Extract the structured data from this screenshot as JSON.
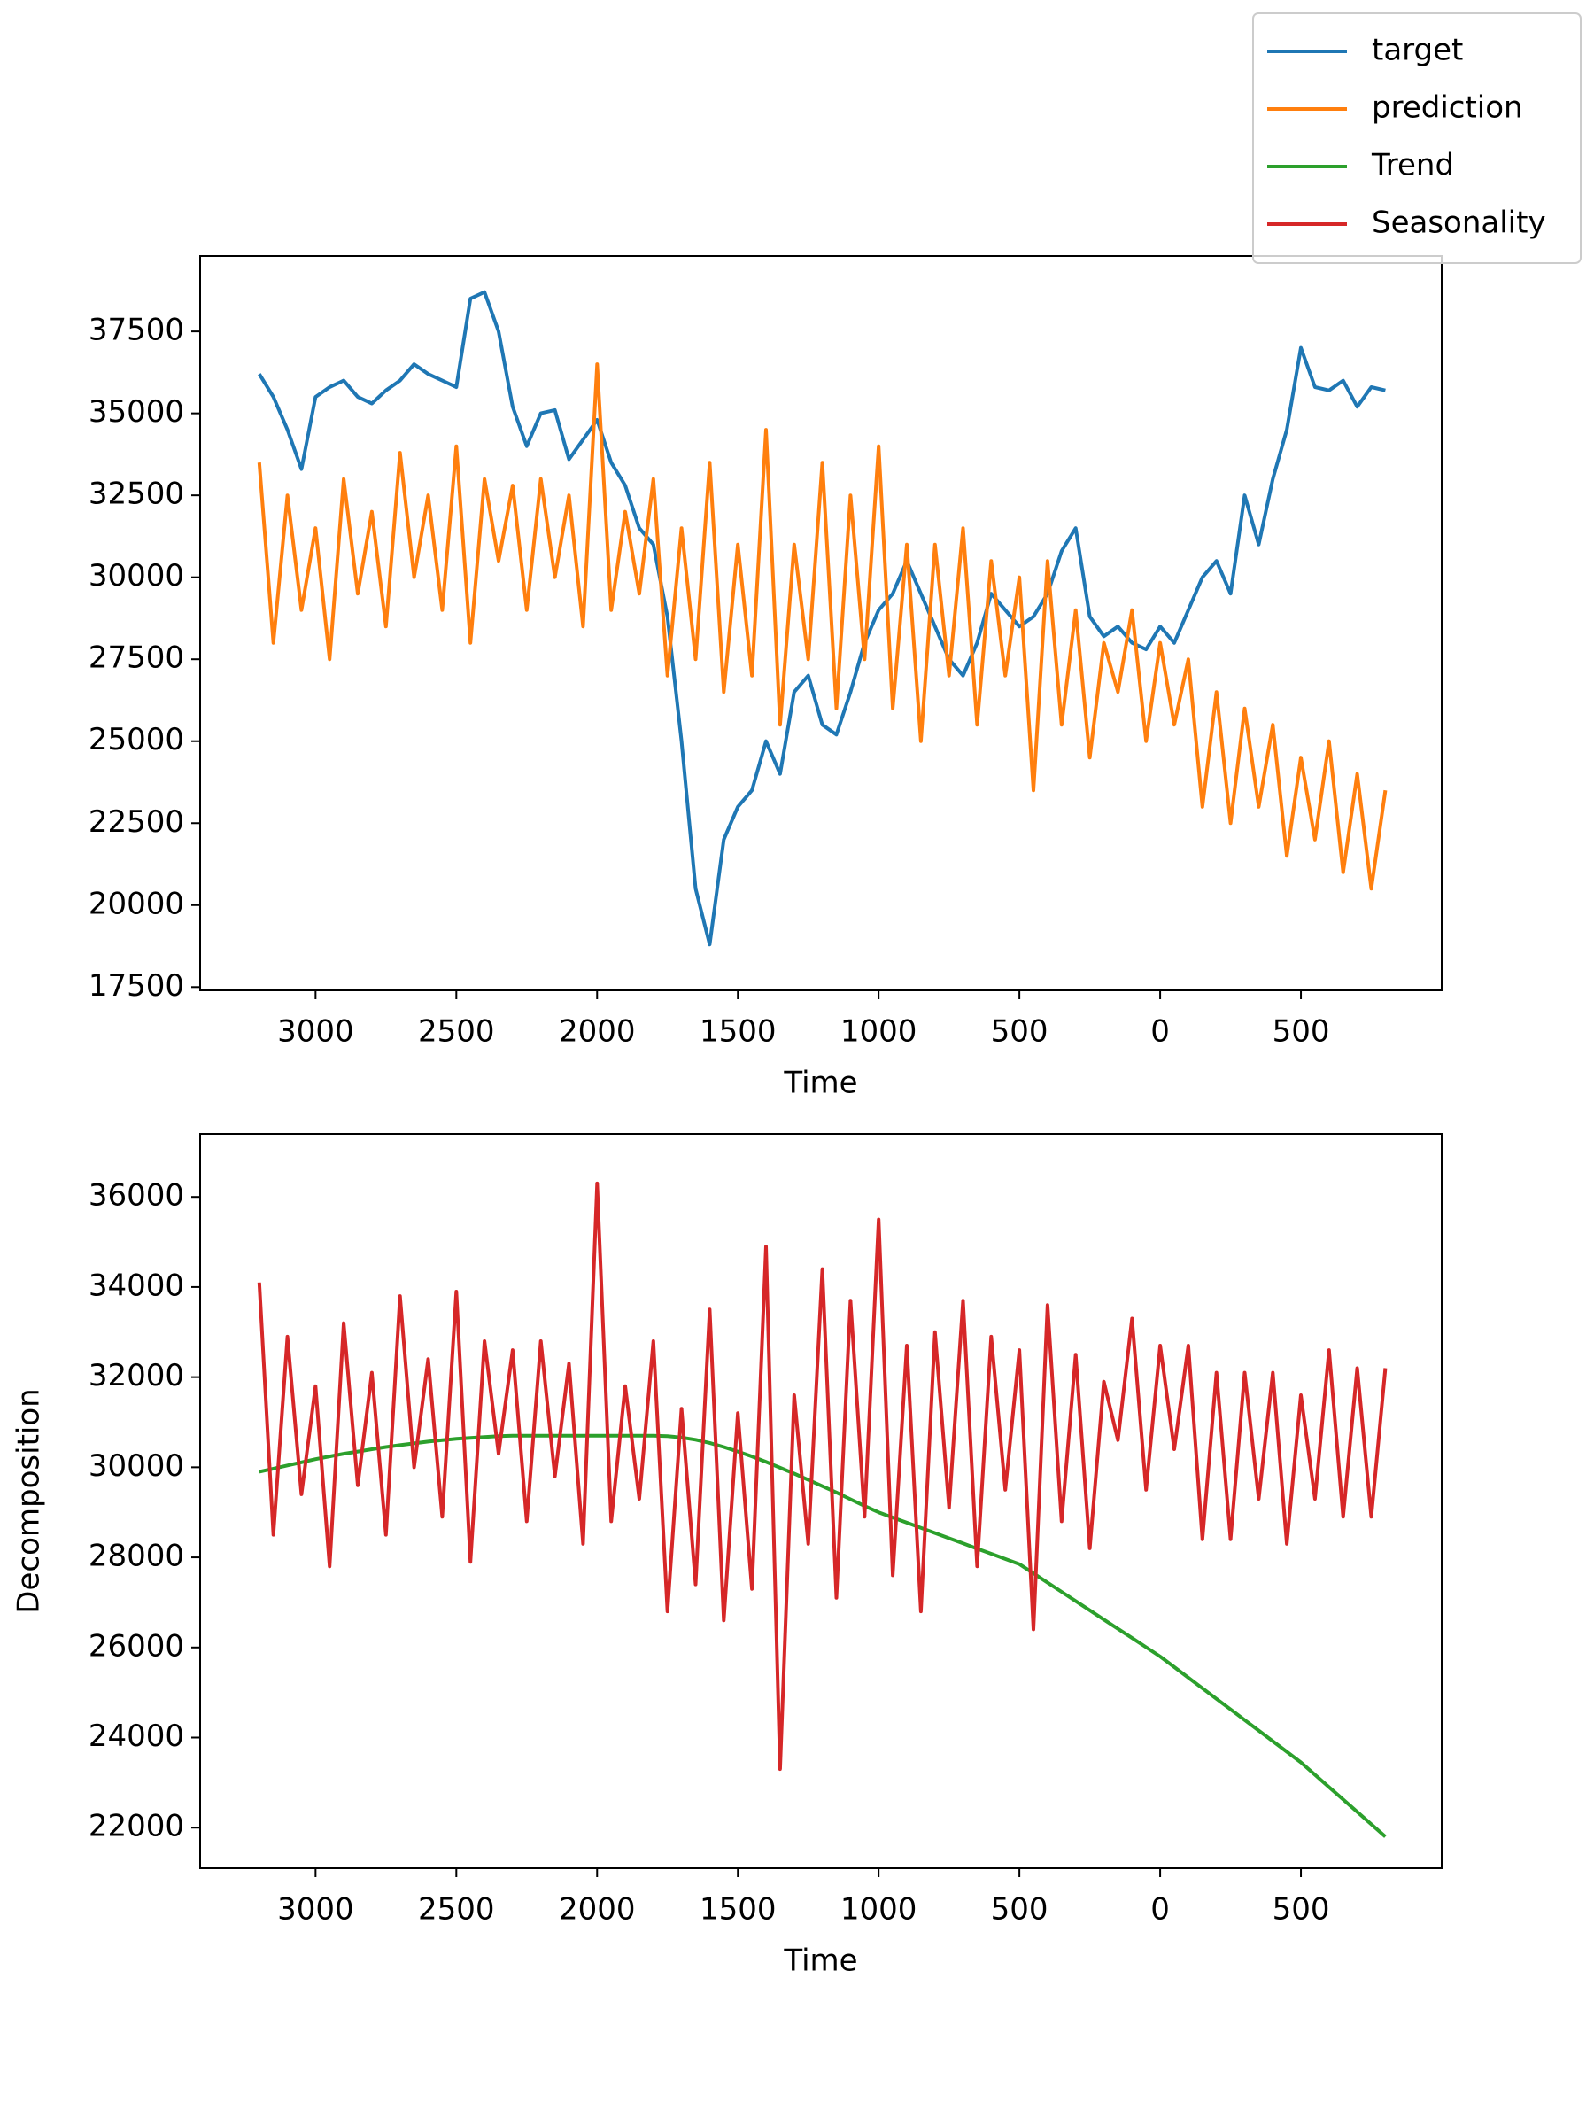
{
  "legend": "upper right",
  "chart_data": [
    {
      "type": "line",
      "xlabel": "Time",
      "xlim": [
        -3410,
        1000
      ],
      "ylim": [
        17400,
        39800
      ],
      "xticks": [
        {
          "value": -3000,
          "label": "3000"
        },
        {
          "value": -2500,
          "label": "2500"
        },
        {
          "value": -2000,
          "label": "2000"
        },
        {
          "value": -1500,
          "label": "1500"
        },
        {
          "value": -1000,
          "label": "1000"
        },
        {
          "value": -500,
          "label": "500"
        },
        0,
        500
      ],
      "yticks": [
        17500,
        20000,
        22500,
        25000,
        27500,
        30000,
        32500,
        35000,
        37500
      ],
      "x": [
        -3200,
        -3150,
        -3100,
        -3050,
        -3000,
        -2950,
        -2900,
        -2850,
        -2800,
        -2750,
        -2700,
        -2650,
        -2600,
        -2550,
        -2500,
        -2450,
        -2400,
        -2350,
        -2300,
        -2250,
        -2200,
        -2150,
        -2100,
        -2050,
        -2000,
        -1950,
        -1900,
        -1850,
        -1800,
        -1750,
        -1700,
        -1650,
        -1600,
        -1550,
        -1500,
        -1450,
        -1400,
        -1350,
        -1300,
        -1250,
        -1200,
        -1150,
        -1100,
        -1050,
        -1000,
        -950,
        -900,
        -850,
        -800,
        -750,
        -700,
        -650,
        -600,
        -550,
        -500,
        -450,
        -400,
        -350,
        -300,
        -250,
        -200,
        -150,
        -100,
        -50,
        0,
        50,
        100,
        150,
        200,
        250,
        300,
        350,
        400,
        450,
        500,
        550,
        600,
        650,
        700,
        750,
        800
      ],
      "series": [
        {
          "name": "target",
          "color": "#1f77b4",
          "values": [
            36200,
            35500,
            34500,
            33300,
            35500,
            35800,
            36000,
            35500,
            35300,
            35700,
            36000,
            36500,
            36200,
            36000,
            35800,
            38500,
            38700,
            37500,
            35200,
            34000,
            35000,
            35100,
            33600,
            34200,
            34800,
            33500,
            32800,
            31500,
            31000,
            28800,
            25000,
            20500,
            18800,
            22000,
            23000,
            23500,
            25000,
            24000,
            26500,
            27000,
            25500,
            25200,
            26500,
            28000,
            29000,
            29500,
            30500,
            29500,
            28500,
            27500,
            27000,
            28000,
            29500,
            29000,
            28500,
            28800,
            29500,
            30800,
            31500,
            28800,
            28200,
            28500,
            28000,
            27800,
            28500,
            28000,
            29000,
            30000,
            30500,
            29500,
            32500,
            31000,
            33000,
            34500,
            37000,
            35800,
            35700,
            36000,
            35200,
            35800,
            35700
          ]
        },
        {
          "name": "prediction",
          "color": "#ff7f0e",
          "values": [
            33500,
            28000,
            32500,
            29000,
            31500,
            27500,
            33000,
            29500,
            32000,
            28500,
            33800,
            30000,
            32500,
            29000,
            34000,
            28000,
            33000,
            30500,
            32800,
            29000,
            33000,
            30000,
            32500,
            28500,
            36500,
            29000,
            32000,
            29500,
            33000,
            27000,
            31500,
            27500,
            33500,
            26500,
            31000,
            27000,
            34500,
            25500,
            31000,
            27500,
            33500,
            26000,
            32500,
            27500,
            34000,
            26000,
            31000,
            25000,
            31000,
            27000,
            31500,
            25500,
            30500,
            27000,
            30000,
            23500,
            30500,
            25500,
            29000,
            24500,
            28000,
            26500,
            29000,
            25000,
            28000,
            25500,
            27500,
            23000,
            26500,
            22500,
            26000,
            23000,
            25500,
            21500,
            24500,
            22000,
            25000,
            21000,
            24000,
            20500,
            23500
          ]
        }
      ]
    },
    {
      "type": "line",
      "xlabel": "Time",
      "ylabel": "Decomposition",
      "xlim": [
        -3410,
        1000
      ],
      "ylim": [
        21100,
        37400
      ],
      "xticks": [
        {
          "value": -3000,
          "label": "3000"
        },
        {
          "value": -2500,
          "label": "2500"
        },
        {
          "value": -2000,
          "label": "2000"
        },
        {
          "value": -1500,
          "label": "1500"
        },
        {
          "value": -1000,
          "label": "1000"
        },
        {
          "value": -500,
          "label": "500"
        },
        0,
        500
      ],
      "yticks": [
        22000,
        24000,
        26000,
        28000,
        30000,
        32000,
        34000,
        36000
      ],
      "x": [
        -3200,
        -3150,
        -3100,
        -3050,
        -3000,
        -2950,
        -2900,
        -2850,
        -2800,
        -2750,
        -2700,
        -2650,
        -2600,
        -2550,
        -2500,
        -2450,
        -2400,
        -2350,
        -2300,
        -2250,
        -2200,
        -2150,
        -2100,
        -2050,
        -2000,
        -1950,
        -1900,
        -1850,
        -1800,
        -1750,
        -1700,
        -1650,
        -1600,
        -1550,
        -1500,
        -1450,
        -1400,
        -1350,
        -1300,
        -1250,
        -1200,
        -1150,
        -1100,
        -1050,
        -1000,
        -950,
        -900,
        -850,
        -800,
        -750,
        -700,
        -650,
        -600,
        -550,
        -500,
        -450,
        -400,
        -350,
        -300,
        -250,
        -200,
        -150,
        -100,
        -50,
        0,
        50,
        100,
        150,
        200,
        250,
        300,
        350,
        400,
        450,
        500,
        550,
        600,
        650,
        700,
        750,
        800
      ],
      "series": [
        {
          "name": "Trend",
          "color": "#2ca02c",
          "values": [
            29900,
            29970,
            30040,
            30110,
            30180,
            30240,
            30300,
            30350,
            30400,
            30450,
            30490,
            30530,
            30570,
            30600,
            30630,
            30650,
            30670,
            30690,
            30700,
            30700,
            30700,
            30700,
            30700,
            30700,
            30700,
            30700,
            30700,
            30700,
            30700,
            30690,
            30660,
            30610,
            30540,
            30450,
            30350,
            30240,
            30120,
            29990,
            29860,
            29720,
            29580,
            29440,
            29290,
            29140,
            29000,
            28885,
            28770,
            28655,
            28540,
            28425,
            28310,
            28195,
            28080,
            27965,
            27850,
            27645,
            27440,
            27235,
            27030,
            26825,
            26620,
            26415,
            26210,
            26005,
            25800,
            25565,
            25330,
            25095,
            24860,
            24625,
            24390,
            24155,
            23920,
            23685,
            23450,
            23175,
            22900,
            22625,
            22350,
            22075,
            21800
          ]
        },
        {
          "name": "Seasonality",
          "color": "#d62728",
          "values": [
            34100,
            28500,
            32900,
            29400,
            31800,
            27800,
            33200,
            29600,
            32100,
            28500,
            33800,
            30000,
            32400,
            28900,
            33900,
            27900,
            32800,
            30300,
            32600,
            28800,
            32800,
            29800,
            32300,
            28300,
            36300,
            28800,
            31800,
            29300,
            32800,
            26800,
            31300,
            27400,
            33500,
            26600,
            31200,
            27300,
            34900,
            23300,
            31600,
            28300,
            34400,
            27100,
            33700,
            28900,
            35500,
            27600,
            32700,
            26800,
            33000,
            29100,
            33700,
            27800,
            32900,
            29500,
            32600,
            26400,
            33600,
            28800,
            32500,
            28200,
            31900,
            30600,
            33300,
            29500,
            32700,
            30400,
            32700,
            28400,
            32100,
            28400,
            32100,
            29300,
            32100,
            28300,
            31600,
            29300,
            32600,
            28900,
            32200,
            28900,
            32200
          ]
        }
      ]
    }
  ]
}
